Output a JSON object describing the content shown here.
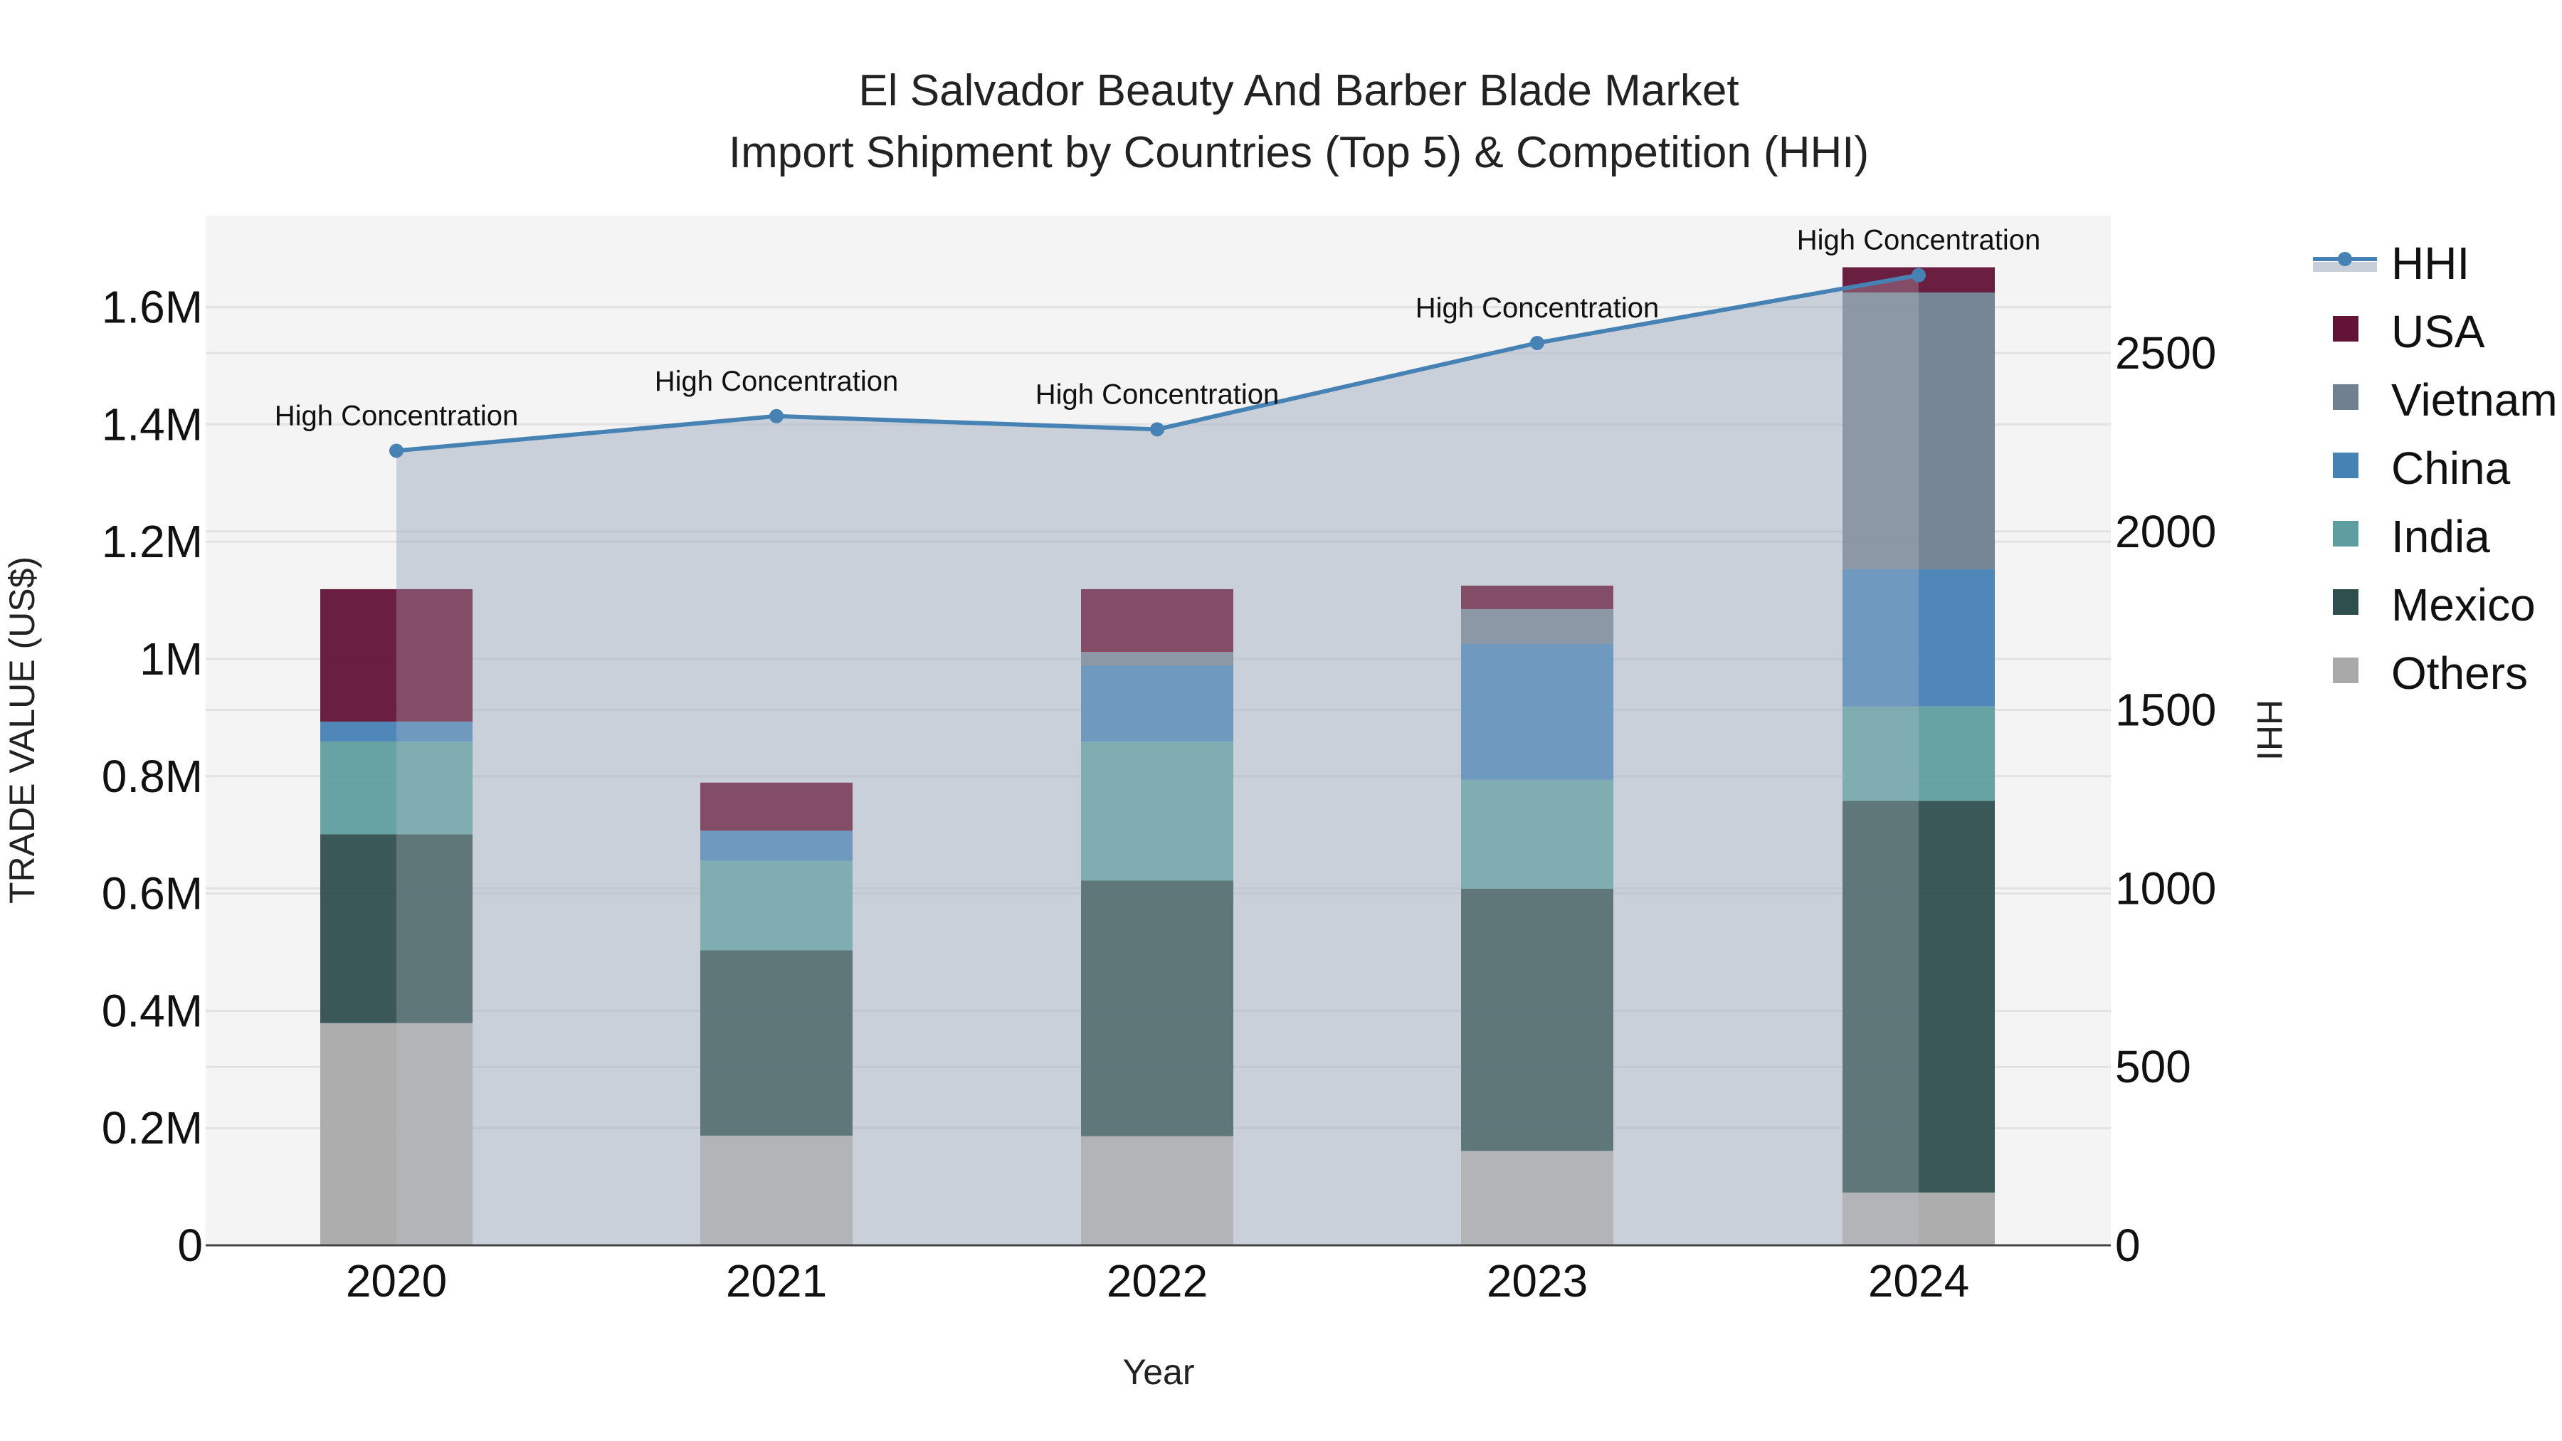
{
  "title": {
    "line1": "El Salvador Beauty And Barber Blade Market",
    "line2": "Import Shipment by Countries (Top 5) & Competition (HHI)"
  },
  "axes": {
    "x_title": "Year",
    "y_left_title": "TRADE VALUE (US$)",
    "y_right_title": "HHI",
    "y_left_ticks": [
      "0",
      "0.2M",
      "0.4M",
      "0.6M",
      "0.8M",
      "1M",
      "1.2M",
      "1.4M",
      "1.6M"
    ],
    "y_right_ticks": [
      "0",
      "500",
      "1000",
      "1500",
      "2000",
      "2500"
    ],
    "x_ticks": [
      "2020",
      "2021",
      "2022",
      "2023",
      "2024"
    ]
  },
  "legend": [
    {
      "label": "HHI",
      "type": "line",
      "color": "#4682B4"
    },
    {
      "label": "USA",
      "type": "box",
      "color": "#631336"
    },
    {
      "label": "Vietnam",
      "type": "box",
      "color": "#708090"
    },
    {
      "label": "China",
      "type": "box",
      "color": "#4682B4"
    },
    {
      "label": "India",
      "type": "box",
      "color": "#5F9EA0"
    },
    {
      "label": "Mexico",
      "type": "box",
      "color": "#2F4F4F"
    },
    {
      "label": "Others",
      "type": "box",
      "color": "#A9A9A9"
    }
  ],
  "annotations": [
    "High Concentration",
    "High Concentration",
    "High Concentration",
    "High Concentration",
    "High Concentration"
  ],
  "colors": {
    "plot_bg": "#F4F4F4",
    "grid": "#E2E2E2",
    "hhi_line": "#4682B4",
    "hhi_fill": "rgba(160,172,190,0.50)",
    "axis_line": "#444444"
  },
  "chart_data": {
    "type": "bar",
    "title": "El Salvador Beauty And Barber Blade Market — Import Shipment by Countries (Top 5) & Competition (HHI)",
    "xlabel": "Year",
    "ylabel": "TRADE VALUE (US$)",
    "y2label": "HHI",
    "stacked": true,
    "ylim": [
      0,
      1750000
    ],
    "y2lim": [
      0,
      2840
    ],
    "grid": true,
    "legend_position": "right",
    "categories": [
      "2020",
      "2021",
      "2022",
      "2023",
      "2024"
    ],
    "series": [
      {
        "name": "Others",
        "color": "#A9A9A9",
        "values": [
          379000,
          187000,
          186000,
          161000,
          90000
        ]
      },
      {
        "name": "Mexico",
        "color": "#2F4F4F",
        "values": [
          322000,
          316000,
          436000,
          447000,
          668000
        ]
      },
      {
        "name": "India",
        "color": "#5F9EA0",
        "values": [
          158000,
          153000,
          237000,
          186000,
          161000
        ]
      },
      {
        "name": "China",
        "color": "#4682B4",
        "values": [
          34000,
          51000,
          130000,
          232000,
          234000
        ]
      },
      {
        "name": "Vietnam",
        "color": "#708090",
        "values": [
          0,
          0,
          23000,
          59000,
          472000
        ]
      },
      {
        "name": "USA",
        "color": "#631336",
        "values": [
          226000,
          82000,
          107000,
          40000,
          43000
        ]
      }
    ],
    "line_series": {
      "name": "HHI",
      "axis": "right",
      "color": "#4682B4",
      "values": [
        2226,
        2323,
        2286,
        2528,
        2718
      ],
      "labels": [
        "High Concentration",
        "High Concentration",
        "High Concentration",
        "High Concentration",
        "High Concentration"
      ]
    }
  }
}
